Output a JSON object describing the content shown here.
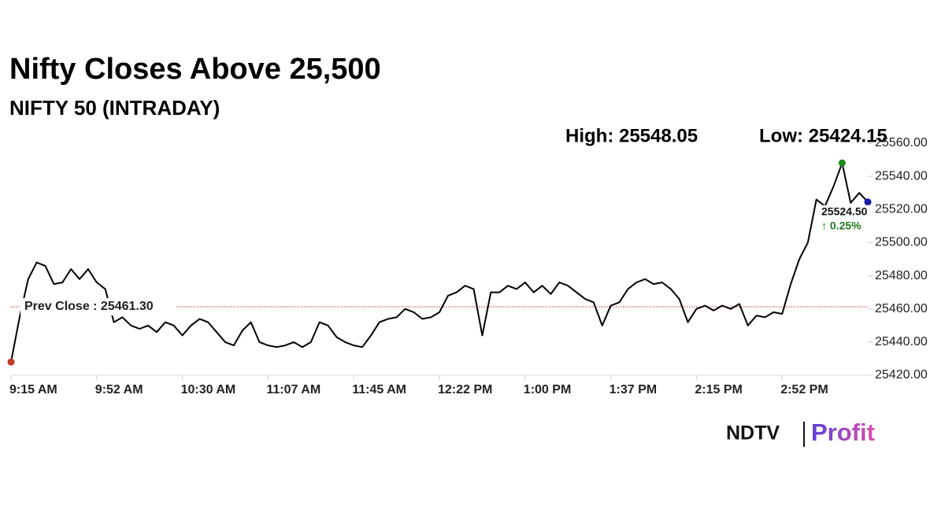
{
  "chart_data": {
    "type": "line",
    "title": "Nifty Closes Above 25,500",
    "subtitle": "NIFTY 50 (INTRADAY)",
    "high_label": "High: 25548.05",
    "low_label": "Low: 25424.15",
    "last_value_label": "25524.50",
    "change_label": "↑ 0.25%",
    "prev_close": {
      "value": 25461.3,
      "label": "Prev Close : 25461.30"
    },
    "categories": [
      "9:15 AM",
      null,
      null,
      null,
      null,
      null,
      null,
      null,
      null,
      null,
      "9:52 AM",
      null,
      null,
      null,
      null,
      null,
      null,
      null,
      null,
      null,
      "10:30 AM",
      null,
      null,
      null,
      null,
      null,
      null,
      null,
      null,
      null,
      "11:07 AM",
      null,
      null,
      null,
      null,
      null,
      null,
      null,
      null,
      null,
      "11:45 AM",
      null,
      null,
      null,
      null,
      null,
      null,
      null,
      null,
      null,
      "12:22 PM",
      null,
      null,
      null,
      null,
      null,
      null,
      null,
      null,
      null,
      "1:00 PM",
      null,
      null,
      null,
      null,
      null,
      null,
      null,
      null,
      null,
      "1:37 PM",
      null,
      null,
      null,
      null,
      null,
      null,
      null,
      null,
      null,
      "2:15 PM",
      null,
      null,
      null,
      null,
      null,
      null,
      null,
      null,
      null,
      "2:52 PM",
      null,
      null,
      null,
      null,
      null,
      null,
      null,
      null,
      null,
      null
    ],
    "series": [
      {
        "name": "NIFTY 50",
        "color": "#000000",
        "values": [
          25428,
          25455,
          25478,
          25488,
          25486,
          25475,
          25476,
          25484,
          25478,
          25484,
          25476,
          25472,
          25452,
          25455,
          25450,
          25448,
          25450,
          25446,
          25452,
          25450,
          25444,
          25450,
          25454,
          25452,
          25446,
          25440,
          25438,
          25447,
          25452,
          25440,
          25438,
          25437,
          25438,
          25440,
          25437,
          25440,
          25452,
          25450,
          25443,
          25440,
          25438,
          25437,
          25444,
          25452,
          25454,
          25455,
          25460,
          25458,
          25454,
          25455,
          25458,
          25468,
          25470,
          25474,
          25472,
          25444,
          25470,
          25470,
          25474,
          25472,
          25476,
          25470,
          25474,
          25469,
          25476,
          25474,
          25470,
          25466,
          25464,
          25450,
          25462,
          25464,
          25472,
          25476,
          25478,
          25475,
          25476,
          25472,
          25466,
          25452,
          25460,
          25462,
          25459,
          25462,
          25460,
          25463,
          25450,
          25456,
          25455,
          25458,
          25457,
          25475,
          25490,
          25500,
          25526,
          25522,
          25534,
          25548.05,
          25524,
          25530,
          25524.5
        ]
      }
    ],
    "start_color": "#c0392b",
    "high_color": "#1e8c1e",
    "last_color": "#1a1aa8",
    "prev_close_color": "#c0392b",
    "change_color": "#1e7a1e",
    "ylim": [
      25420,
      25560
    ],
    "yticks": [
      {
        "value": 25420,
        "label": "25420.00"
      },
      {
        "value": 25440,
        "label": "25440.00"
      },
      {
        "value": 25460,
        "label": "25460.00"
      },
      {
        "value": 25480,
        "label": "25480.00"
      },
      {
        "value": 25500,
        "label": "25500.00"
      },
      {
        "value": 25520,
        "label": "25520.00"
      },
      {
        "value": 25540,
        "label": "25540.00"
      },
      {
        "value": 25560,
        "label": "25560.00"
      }
    ],
    "grid": false,
    "logo": {
      "left": "NDTV",
      "right": "Profit"
    }
  }
}
